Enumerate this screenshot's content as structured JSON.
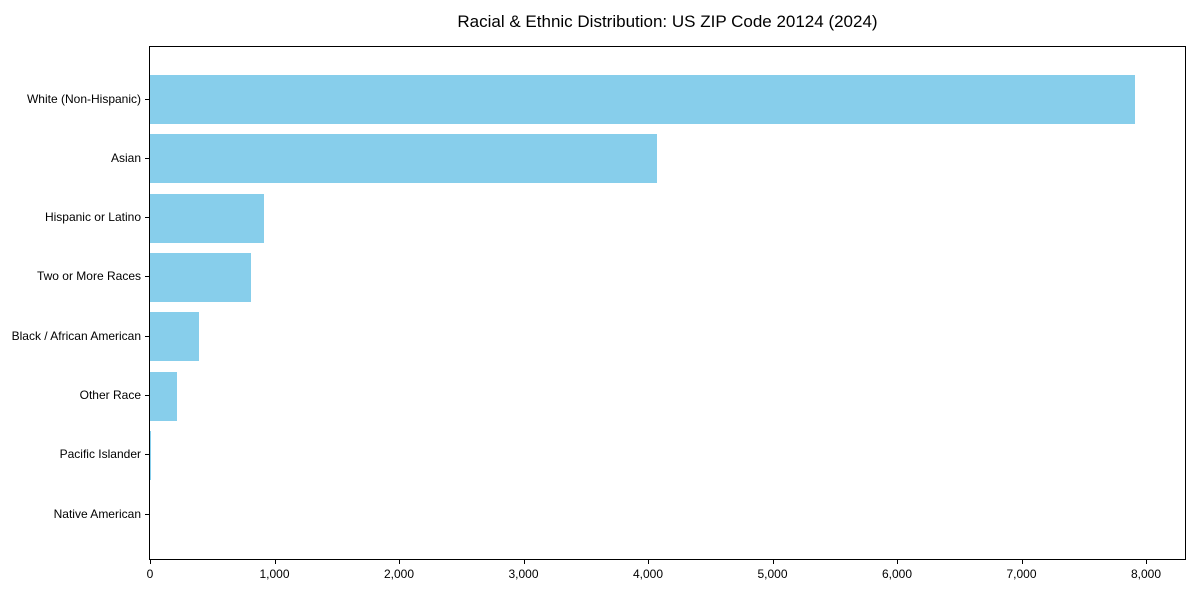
{
  "chart_data": {
    "type": "bar",
    "orientation": "horizontal",
    "title": "Racial & Ethnic Distribution: US ZIP Code 20124 (2024)",
    "categories": [
      "White (Non-Hispanic)",
      "Asian",
      "Hispanic or Latino",
      "Two or More Races",
      "Black / African American",
      "Other Race",
      "Pacific Islander",
      "Native American"
    ],
    "values": [
      7915,
      4070,
      915,
      810,
      395,
      215,
      8,
      0
    ],
    "xlabel": "",
    "ylabel": "",
    "xlim": [
      0,
      8313
    ],
    "xticks": [
      0,
      1000,
      2000,
      3000,
      4000,
      5000,
      6000,
      7000,
      8000
    ],
    "xtick_labels": [
      "0",
      "1,000",
      "2,000",
      "3,000",
      "4,000",
      "5,000",
      "6,000",
      "7,000",
      "8,000"
    ],
    "bar_color": "#87CEEB",
    "axis_color": "#000000",
    "background_color": "#ffffff",
    "grid": false,
    "legend": "none"
  }
}
